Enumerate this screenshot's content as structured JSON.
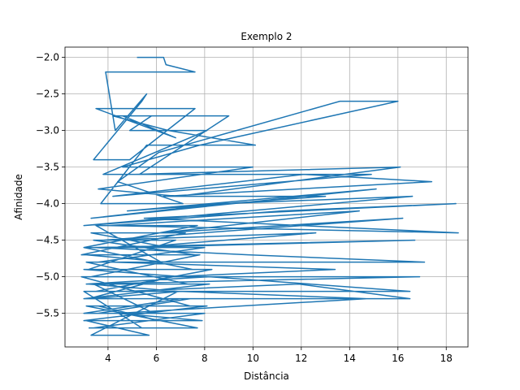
{
  "chart_data": {
    "type": "line",
    "title": "Exemplo 2",
    "xlabel": "Distância",
    "ylabel": "Afinidade",
    "xlim": [
      2.22,
      18.9
    ],
    "ylim": [
      -5.96,
      -1.86
    ],
    "xticks": [
      4,
      6,
      8,
      10,
      12,
      14,
      16,
      18
    ],
    "yticks": [
      -2.0,
      -2.5,
      -3.0,
      -3.5,
      -4.0,
      -4.5,
      -5.0,
      -5.5
    ],
    "xtick_labels": [
      "4",
      "6",
      "8",
      "10",
      "12",
      "14",
      "16",
      "18"
    ],
    "ytick_labels": [
      "−2.0",
      "−2.5",
      "−3.0",
      "−3.5",
      "−4.0",
      "−4.5",
      "−5.0",
      "−5.5"
    ],
    "grid": true,
    "legend": "none",
    "series": [
      {
        "color": "#1f77b4",
        "points_approximate": true,
        "x": [
          5.2,
          6.3,
          6.4,
          7.6,
          6.3,
          4.8,
          3.9,
          4.3,
          5.6,
          5.4,
          3.4,
          4.9,
          7.6,
          3.5,
          6.8,
          4.6,
          5.8,
          4.9,
          8.1,
          3.8,
          5.3,
          9.0,
          4.2,
          6.5,
          10.1,
          5.6,
          3.7,
          7.1,
          4.4,
          6.1,
          13.6,
          16.0,
          7.8,
          4.6,
          10.0,
          3.6,
          6.9,
          16.1,
          5.1,
          9.5,
          14.9,
          4.2,
          12.1,
          17.4,
          6.3,
          13.0,
          4.8,
          15.1,
          3.3,
          8.7,
          16.6,
          3.0,
          11.2,
          18.4,
          5.5,
          18.5,
          4.0,
          14.4,
          6.2,
          16.2,
          3.8,
          12.6,
          5.1,
          16.7,
          3.4,
          9.8,
          17.1,
          4.2,
          13.4,
          6.6,
          16.9,
          3.1,
          8.2,
          16.5,
          4.7,
          11.9,
          16.5,
          3.3,
          7.0,
          14.7,
          4.4,
          7.9,
          3.0,
          8.1,
          3.1,
          7.7,
          3.4,
          8.0,
          3.6,
          7.4,
          3.0,
          8.2,
          3.2,
          6.9,
          3.5,
          8.3,
          3.0,
          7.1,
          3.3,
          7.8,
          3.1,
          6.4,
          3.6,
          8.0,
          3.0,
          7.5,
          3.2,
          6.8,
          3.4,
          7.6,
          2.9,
          7.2,
          3.3,
          6.5,
          3.0,
          7.7,
          3.5,
          6.2,
          3.1,
          7.3,
          3.4,
          5.9,
          3.0,
          7.0,
          3.2,
          6.6,
          2.9,
          7.4,
          3.6,
          6.1,
          3.1,
          5.7,
          3.3,
          6.9,
          3.0,
          5.4,
          3.2
        ],
        "y": [
          -2.0,
          -2.0,
          -2.1,
          -2.2,
          -2.2,
          -2.2,
          -2.2,
          -3.0,
          -2.5,
          -2.6,
          -3.4,
          -3.4,
          -2.7,
          -2.7,
          -3.1,
          -2.8,
          -2.8,
          -3.0,
          -3.0,
          -3.6,
          -3.6,
          -2.8,
          -2.8,
          -3.0,
          -3.2,
          -3.2,
          -4.0,
          -4.0,
          -3.7,
          -3.3,
          -2.6,
          -2.6,
          -3.2,
          -3.5,
          -3.5,
          -3.8,
          -3.9,
          -3.5,
          -3.6,
          -3.6,
          -3.6,
          -3.9,
          -3.6,
          -3.7,
          -3.9,
          -3.9,
          -4.1,
          -3.8,
          -4.2,
          -4.0,
          -3.9,
          -4.3,
          -4.1,
          -4.0,
          -4.2,
          -4.4,
          -4.3,
          -4.1,
          -4.4,
          -4.2,
          -4.5,
          -4.4,
          -4.6,
          -4.5,
          -4.6,
          -4.7,
          -4.8,
          -4.8,
          -4.9,
          -5.0,
          -5.0,
          -5.1,
          -5.0,
          -5.2,
          -5.2,
          -5.1,
          -5.3,
          -5.3,
          -5.2,
          -5.3,
          -5.5,
          -5.6,
          -5.6,
          -5.4,
          -5.4,
          -5.7,
          -5.7,
          -5.5,
          -5.5,
          -5.3,
          -5.3,
          -5.1,
          -5.1,
          -5.2,
          -5.2,
          -4.9,
          -4.9,
          -5.0,
          -5.0,
          -4.7,
          -4.7,
          -4.8,
          -4.8,
          -4.6,
          -4.6,
          -4.9,
          -4.9,
          -4.5,
          -4.5,
          -4.7,
          -4.7,
          -4.4,
          -4.4,
          -4.6,
          -4.6,
          -4.3,
          -4.3,
          -4.8,
          -4.8,
          -5.1,
          -5.1,
          -5.5,
          -5.5,
          -5.3,
          -5.3,
          -5.0,
          -5.0,
          -5.4,
          -5.4,
          -5.6,
          -5.6,
          -5.8,
          -5.8,
          -5.2,
          -5.2,
          -5.7,
          -5.7
        ]
      }
    ]
  }
}
